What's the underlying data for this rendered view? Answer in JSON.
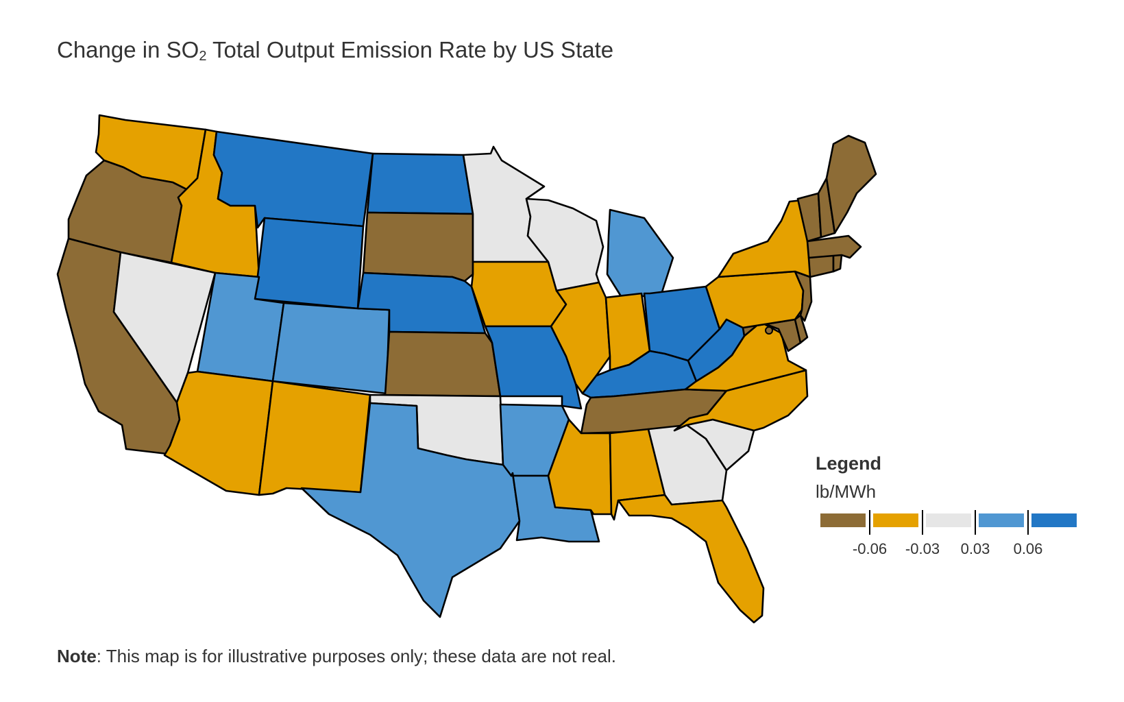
{
  "title": {
    "prefix": "Change in SO",
    "subscript": "2",
    "suffix": " Total Output Emission Rate by US State"
  },
  "legend": {
    "title": "Legend",
    "unit": "lb/MWh",
    "thresholds": [
      "-0.06",
      "-0.03",
      "0.03",
      "0.06"
    ],
    "colors": [
      "#8d6c36",
      "#e5a100",
      "#e6e6e6",
      "#5097d2",
      "#2277c5"
    ]
  },
  "note": {
    "label": "Note",
    "text": ": This map is for illustrative purposes only; these data are not real."
  },
  "states": [
    {
      "name": "Washington",
      "color": "#e5a100"
    },
    {
      "name": "Oregon",
      "color": "#8d6c36"
    },
    {
      "name": "California",
      "color": "#8d6c36"
    },
    {
      "name": "Idaho",
      "color": "#e5a100"
    },
    {
      "name": "Nevada",
      "color": "#e6e6e6"
    },
    {
      "name": "Montana",
      "color": "#2277c5"
    },
    {
      "name": "Wyoming",
      "color": "#2277c5"
    },
    {
      "name": "Utah",
      "color": "#5097d2"
    },
    {
      "name": "Arizona",
      "color": "#e5a100"
    },
    {
      "name": "Colorado",
      "color": "#5097d2"
    },
    {
      "name": "New Mexico",
      "color": "#e5a100"
    },
    {
      "name": "North Dakota",
      "color": "#2277c5"
    },
    {
      "name": "South Dakota",
      "color": "#8d6c36"
    },
    {
      "name": "Nebraska",
      "color": "#2277c5"
    },
    {
      "name": "Kansas",
      "color": "#8d6c36"
    },
    {
      "name": "Oklahoma",
      "color": "#e6e6e6"
    },
    {
      "name": "Texas",
      "color": "#5097d2"
    },
    {
      "name": "Minnesota",
      "color": "#e6e6e6"
    },
    {
      "name": "Iowa",
      "color": "#e5a100"
    },
    {
      "name": "Missouri",
      "color": "#2277c5"
    },
    {
      "name": "Arkansas",
      "color": "#5097d2"
    },
    {
      "name": "Louisiana",
      "color": "#5097d2"
    },
    {
      "name": "Wisconsin",
      "color": "#e6e6e6"
    },
    {
      "name": "Illinois",
      "color": "#e5a100"
    },
    {
      "name": "Michigan",
      "color": "#5097d2"
    },
    {
      "name": "Indiana",
      "color": "#e5a100"
    },
    {
      "name": "Ohio",
      "color": "#2277c5"
    },
    {
      "name": "Kentucky",
      "color": "#2277c5"
    },
    {
      "name": "Tennessee",
      "color": "#8d6c36"
    },
    {
      "name": "Mississippi",
      "color": "#e5a100"
    },
    {
      "name": "Alabama",
      "color": "#e5a100"
    },
    {
      "name": "Georgia",
      "color": "#e6e6e6"
    },
    {
      "name": "Florida",
      "color": "#e5a100"
    },
    {
      "name": "South Carolina",
      "color": "#e6e6e6"
    },
    {
      "name": "North Carolina",
      "color": "#e5a100"
    },
    {
      "name": "Virginia",
      "color": "#e5a100"
    },
    {
      "name": "West Virginia",
      "color": "#2277c5"
    },
    {
      "name": "Maryland",
      "color": "#8d6c36"
    },
    {
      "name": "Delaware",
      "color": "#8d6c36"
    },
    {
      "name": "Pennsylvania",
      "color": "#e5a100"
    },
    {
      "name": "New Jersey",
      "color": "#8d6c36"
    },
    {
      "name": "New York",
      "color": "#e5a100"
    },
    {
      "name": "Connecticut",
      "color": "#8d6c36"
    },
    {
      "name": "Rhode Island",
      "color": "#8d6c36"
    },
    {
      "name": "Massachusetts",
      "color": "#8d6c36"
    },
    {
      "name": "Vermont",
      "color": "#8d6c36"
    },
    {
      "name": "New Hampshire",
      "color": "#8d6c36"
    },
    {
      "name": "Maine",
      "color": "#8d6c36"
    }
  ]
}
